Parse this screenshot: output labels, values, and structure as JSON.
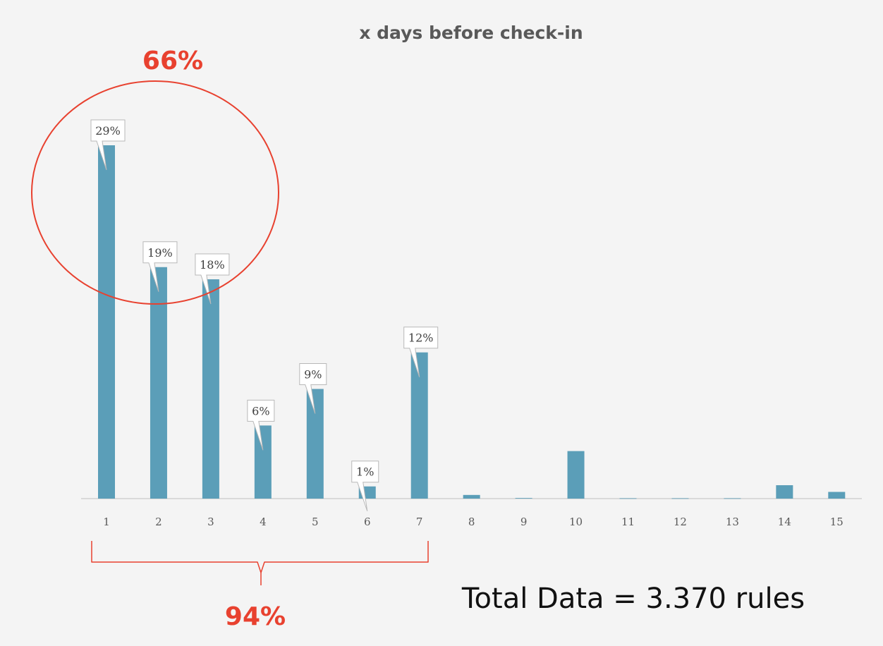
{
  "chart_data": {
    "type": "bar",
    "title": "x days before check-in",
    "xlabel": "",
    "ylabel": "",
    "categories": [
      "1",
      "2",
      "3",
      "4",
      "5",
      "6",
      "7",
      "8",
      "9",
      "10",
      "11",
      "12",
      "13",
      "14",
      "15"
    ],
    "values": [
      29,
      19,
      18,
      6,
      9,
      1,
      12,
      0.3,
      0.05,
      3.9,
      0.03,
      0.03,
      0.03,
      1.1,
      0.55
    ],
    "data_labels": [
      "29%",
      "19%",
      "18%",
      "6%",
      "9%",
      "1%",
      "12%",
      "",
      "",
      "",
      "",
      "",
      "",
      "",
      ""
    ],
    "ylim": [
      0,
      29
    ],
    "grid": false,
    "legend": "none",
    "bar_color": "#5b9eb8",
    "annotations": {
      "circle_label": "66%",
      "brace_label": "94%",
      "total_text": "Total Data = 3.370 rules",
      "annotation_color": "#e8412f"
    }
  }
}
